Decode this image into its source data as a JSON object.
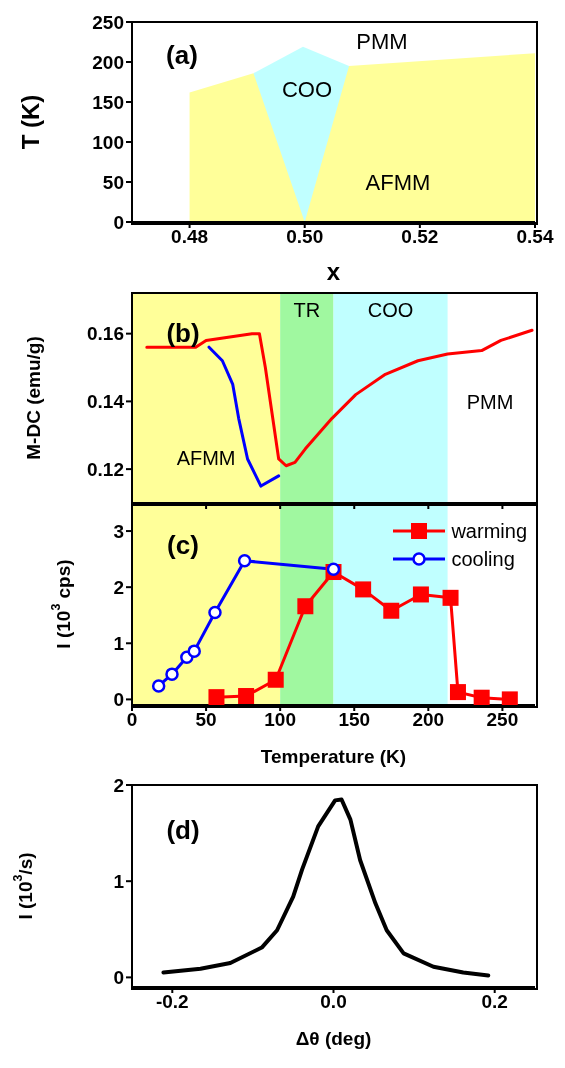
{
  "chart_data": [
    {
      "type": "area",
      "xlabel": "x",
      "ylabel": "T (K)",
      "xlim": [
        0.47,
        0.54
      ],
      "ylim": [
        0,
        250
      ],
      "xticks": [
        {
          "value": 0.48,
          "label": "0.48"
        },
        {
          "value": 0.5,
          "label": "0.50"
        },
        {
          "value": 0.52,
          "label": "0.52"
        },
        {
          "value": 0.54,
          "label": "0.54"
        }
      ],
      "yticks": [
        0,
        50,
        100,
        150,
        200,
        250
      ],
      "series": [
        {
          "color": "#c0ffff",
          "x": [
            0.4911,
            0.4997,
            0.5077
          ],
          "values": [
            186,
            219,
            195
          ]
        },
        {
          "color": "#ffff99",
          "x": [
            0.48,
            0.48,
            0.4911,
            0.5,
            0.5077,
            0.54
          ],
          "values": [
            0,
            162,
            186,
            0,
            195,
            211
          ]
        }
      ],
      "annotations": [
        "(a)",
        "PMM",
        "COO",
        "AFMM"
      ]
    },
    {
      "type": "line",
      "ylabel": "M-DC (emu/g)",
      "xlim": [
        0,
        272
      ],
      "ylim": [
        0.11,
        0.172
      ],
      "xticks": [
        0,
        50,
        100,
        150,
        200,
        250
      ],
      "yticks": [
        0.12,
        0.14,
        0.16
      ],
      "tick_labels": "y",
      "marker": "none",
      "series": [
        {
          "color": "#0000ff",
          "x": [
            52,
            61,
            68,
            72,
            78,
            87,
            99
          ],
          "values": [
            0.156,
            0.152,
            0.145,
            0.135,
            0.123,
            0.115,
            0.118
          ]
        },
        {
          "color": "#ff0000",
          "x": [
            10,
            43,
            50,
            81,
            86,
            90,
            95,
            99,
            104,
            110,
            117,
            135,
            151,
            171,
            193,
            213,
            236,
            249,
            270
          ],
          "values": [
            0.156,
            0.156,
            0.158,
            0.16,
            0.16,
            0.15,
            0.135,
            0.123,
            0.121,
            0.122,
            0.126,
            0.135,
            0.142,
            0.148,
            0.152,
            0.154,
            0.155,
            0.158,
            0.161
          ]
        }
      ],
      "bands": [
        {
          "axis": "x",
          "from": 0,
          "to": 100,
          "label": "AFMM",
          "color": "#ffff99"
        },
        {
          "axis": "x",
          "from": 100,
          "to": 136,
          "label": "TR",
          "color": "#a0f8a0"
        },
        {
          "axis": "x",
          "from": 136,
          "to": 213,
          "label": "COO",
          "color": "#c0ffff"
        }
      ],
      "annotations": [
        "(b)",
        "PMM"
      ]
    },
    {
      "type": "line",
      "xlabel": "Temperature (K)",
      "ylabel": "I (10$^{3}$ cps)",
      "xlim": [
        0,
        272
      ],
      "ylim": [
        -0.1,
        3.5
      ],
      "xticks": [
        0,
        50,
        100,
        150,
        200,
        250
      ],
      "yticks": [
        0,
        1,
        2,
        3
      ],
      "legend": "top right",
      "series": [
        {
          "name": "warming",
          "color": "#ff0000",
          "marker": "square",
          "x": [
            57,
            77,
            97,
            117,
            136,
            156,
            175,
            195,
            215,
            220,
            236,
            255
          ],
          "values": [
            0.04,
            0.06,
            0.35,
            1.66,
            2.27,
            1.96,
            1.58,
            1.87,
            1.81,
            0.13,
            0.03,
            0.0
          ]
        },
        {
          "name": "cooling",
          "color": "#0000ff",
          "marker": "circle",
          "x": [
            18,
            27,
            37,
            42,
            56,
            76,
            136
          ],
          "values": [
            0.24,
            0.45,
            0.75,
            0.86,
            1.55,
            2.47,
            2.32
          ]
        }
      ],
      "bands": [
        {
          "axis": "x",
          "from": 0,
          "to": 100,
          "color": "#ffff99"
        },
        {
          "axis": "x",
          "from": 100,
          "to": 136,
          "color": "#a0f8a0"
        },
        {
          "axis": "x",
          "from": 136,
          "to": 213,
          "color": "#c0ffff"
        }
      ],
      "annotations": [
        "(c)"
      ]
    },
    {
      "type": "line",
      "xlabel": "Δθ (deg)",
      "ylabel": "I (10$^{3}$/s)",
      "xlim": [
        -0.25,
        0.25
      ],
      "ylim": [
        -0.1,
        2
      ],
      "xticks": [
        -0.2,
        {
          "value": 0,
          "label": "0.0"
        },
        0.2
      ],
      "yticks": [
        0,
        1,
        2
      ],
      "marker": "none",
      "series": [
        {
          "color": "#000000",
          "x": [
            -0.211,
            -0.165,
            -0.128,
            -0.089,
            -0.07,
            -0.05,
            -0.039,
            -0.019,
            0.002,
            0.01,
            0.021,
            0.033,
            0.052,
            0.066,
            0.087,
            0.124,
            0.161,
            0.192
          ],
          "values": [
            0.05,
            0.09,
            0.15,
            0.31,
            0.49,
            0.84,
            1.12,
            1.57,
            1.84,
            1.85,
            1.64,
            1.22,
            0.77,
            0.49,
            0.25,
            0.11,
            0.05,
            0.02
          ]
        }
      ],
      "annotations": [
        "(d)"
      ]
    }
  ]
}
